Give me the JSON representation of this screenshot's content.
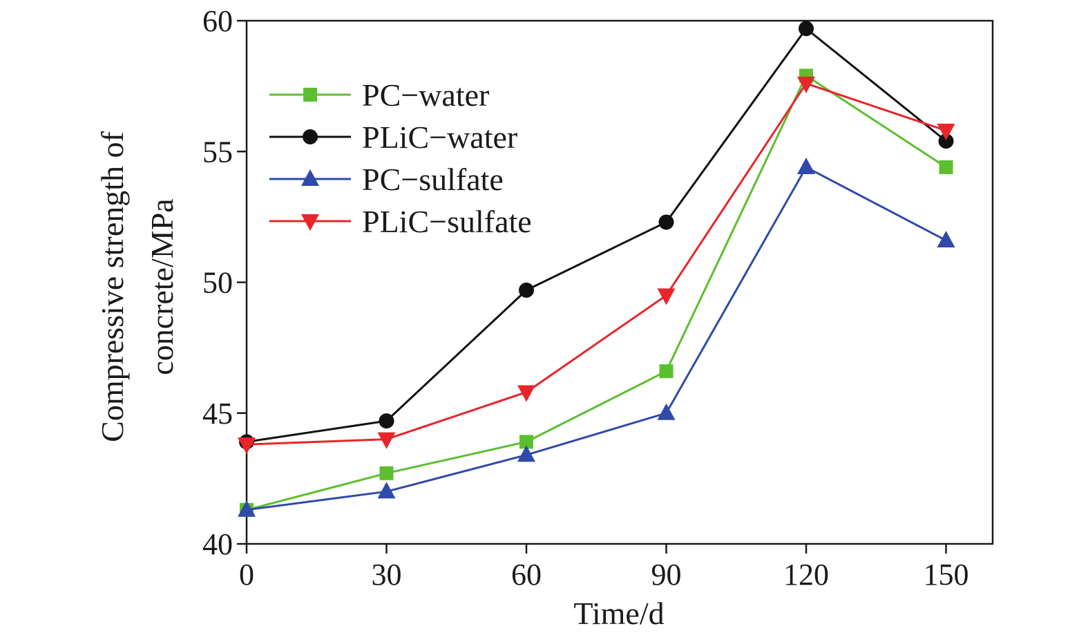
{
  "chart_data": {
    "type": "line",
    "title": "",
    "xlabel": "Time/d",
    "ylabel_lines": [
      "Compressive strength of",
      "concrete/MPa"
    ],
    "x": [
      0,
      30,
      60,
      90,
      120,
      150
    ],
    "xticks": [
      0,
      30,
      60,
      90,
      120,
      150
    ],
    "xtick_labels": [
      "0",
      "30",
      "60",
      "90",
      "120",
      "150"
    ],
    "xlim": [
      0,
      160
    ],
    "ylim": [
      40,
      60
    ],
    "yticks": [
      40,
      45,
      50,
      55,
      60
    ],
    "ytick_labels": [
      "40",
      "45",
      "50",
      "55",
      "60"
    ],
    "grid": false,
    "legend_position": "upper-left",
    "series": [
      {
        "name": "PC−water",
        "color": "#5cbf2f",
        "marker": "square",
        "values": [
          41.3,
          42.7,
          43.9,
          46.6,
          57.9,
          54.4
        ]
      },
      {
        "name": "PLiC−water",
        "color": "#111111",
        "marker": "circle",
        "values": [
          43.9,
          44.7,
          49.7,
          52.3,
          59.7,
          55.4
        ]
      },
      {
        "name": "PC−sulfate",
        "color": "#2f4aa8",
        "marker": "triangle-up",
        "values": [
          41.3,
          42.0,
          43.4,
          45.0,
          54.4,
          51.6
        ]
      },
      {
        "name": "PLiC−sulfate",
        "color": "#e8252a",
        "marker": "triangle-down",
        "values": [
          43.8,
          44.0,
          45.8,
          49.5,
          57.6,
          55.8
        ]
      }
    ]
  }
}
